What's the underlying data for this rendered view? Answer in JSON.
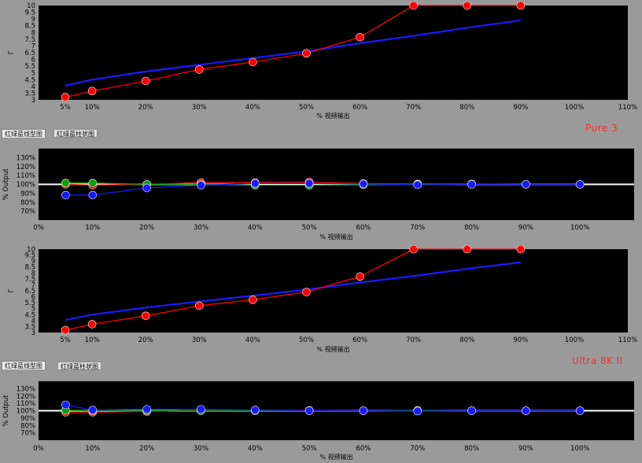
{
  "panels": [
    {
      "brand_label": "Pure 3",
      "tabs": [
        {
          "label": "红绿蓝线型图",
          "active": true
        },
        {
          "label": "红绿蓝柱状图",
          "active": false
        }
      ]
    },
    {
      "brand_label": "Ultra 8K II",
      "tabs": [
        {
          "label": "红绿蓝线型图",
          "active": true
        },
        {
          "label": "红绿蓝柱状图",
          "active": false
        }
      ]
    }
  ],
  "colors": {
    "red": "#ff0000",
    "green": "#0aa10a",
    "blue": "#1a1aff",
    "plot_bg": "#000000",
    "panel_bg": "#9a9a9a",
    "reference_line": "#ffffff"
  },
  "chart_data": [
    {
      "id": "gamma-1",
      "type": "line",
      "xlabel": "% 视频输出",
      "ylabel": "Γ",
      "xlim": [
        0,
        110
      ],
      "ylim": [
        3,
        10
      ],
      "x_ticks": [
        5,
        10,
        20,
        30,
        40,
        50,
        60,
        70,
        80,
        90,
        100,
        110
      ],
      "x_tick_labels": [
        "5%",
        "10%",
        "20%",
        "30%",
        "40%",
        "50%",
        "60%",
        "70%",
        "80%",
        "90%",
        "100%",
        "110%"
      ],
      "y_ticks": [
        3,
        3.5,
        4,
        4.5,
        5,
        5.5,
        6,
        6.5,
        7,
        7.5,
        8,
        8.5,
        9,
        9.5,
        10
      ],
      "y_tick_labels": [
        "3",
        "3.5",
        "4",
        "4.5",
        "5",
        "5.5",
        "6",
        "6.5",
        "7",
        "7.5",
        "8",
        "8.5",
        "9",
        "9.5",
        "10"
      ],
      "series": [
        {
          "color": "blue",
          "markers": false,
          "x": [
            5,
            10,
            20,
            30,
            40,
            50,
            60,
            70,
            80,
            90
          ],
          "y": [
            4.05,
            4.5,
            5.1,
            5.6,
            6.1,
            6.6,
            7.2,
            7.75,
            8.35,
            8.9
          ]
        },
        {
          "color": "red",
          "markers": true,
          "x": [
            5,
            10,
            20,
            30,
            40,
            50,
            60,
            70,
            80,
            90
          ],
          "y": [
            3.2,
            3.65,
            4.4,
            5.25,
            5.8,
            6.45,
            7.65,
            10,
            10,
            10
          ]
        }
      ]
    },
    {
      "id": "rgb-balance-1",
      "type": "line",
      "xlabel": "% 视频输出",
      "ylabel": "% Output",
      "xlim": [
        0,
        110
      ],
      "ylim": [
        60,
        140
      ],
      "x_ticks": [
        0,
        10,
        20,
        30,
        40,
        50,
        60,
        70,
        80,
        90,
        100
      ],
      "x_tick_labels": [
        "0%",
        "10%",
        "20%",
        "30%",
        "40%",
        "50%",
        "60%",
        "70%",
        "80%",
        "90%",
        "100%"
      ],
      "y_ticks": [
        70,
        80,
        90,
        100,
        110,
        120,
        130
      ],
      "y_tick_labels": [
        "70%",
        "80%",
        "90%",
        "100%",
        "110%",
        "120%",
        "130%"
      ],
      "reference_value": 100,
      "series": [
        {
          "color": "red",
          "markers": true,
          "x": [
            5,
            10,
            20,
            30,
            40,
            50,
            60,
            70,
            80,
            90,
            100
          ],
          "y": [
            100,
            99,
            100,
            102,
            102,
            102.5,
            101,
            100.5,
            100.5,
            100,
            100
          ]
        },
        {
          "color": "green",
          "markers": true,
          "x": [
            5,
            10,
            20,
            30,
            40,
            50,
            60,
            70,
            80,
            90,
            100
          ],
          "y": [
            101.5,
            101.5,
            100,
            100,
            99,
            99,
            99.5,
            100,
            100,
            100,
            100
          ]
        },
        {
          "color": "blue",
          "markers": true,
          "x": [
            5,
            10,
            20,
            30,
            40,
            50,
            60,
            70,
            80,
            90,
            100
          ],
          "y": [
            88,
            88,
            96,
            99,
            101,
            101,
            100.5,
            99.5,
            100,
            100,
            100
          ]
        }
      ]
    },
    {
      "id": "gamma-2",
      "type": "line",
      "xlabel": "% 视频输出",
      "ylabel": "Γ",
      "xlim": [
        0,
        110
      ],
      "ylim": [
        3,
        10
      ],
      "x_ticks": [
        5,
        10,
        20,
        30,
        40,
        50,
        60,
        70,
        80,
        90,
        100,
        110
      ],
      "x_tick_labels": [
        "5%",
        "10%",
        "20%",
        "30%",
        "40%",
        "50%",
        "60%",
        "70%",
        "80%",
        "90%",
        "100%",
        "110%"
      ],
      "y_ticks": [
        3,
        3.5,
        4,
        4.5,
        5,
        5.5,
        6,
        6.5,
        7,
        7.5,
        8,
        8.5,
        9,
        9.5,
        10
      ],
      "y_tick_labels": [
        "3",
        "3.5",
        "4",
        "4.5",
        "5",
        "5.5",
        "6",
        "6.5",
        "7",
        "7.5",
        "8",
        "8.5",
        "9",
        "9.5",
        "10"
      ],
      "series": [
        {
          "color": "blue",
          "markers": false,
          "x": [
            5,
            10,
            20,
            30,
            40,
            50,
            60,
            70,
            80,
            90
          ],
          "y": [
            4.05,
            4.5,
            5.1,
            5.6,
            6.1,
            6.6,
            7.2,
            7.75,
            8.35,
            8.9
          ]
        },
        {
          "color": "red",
          "markers": true,
          "x": [
            5,
            10,
            20,
            30,
            40,
            50,
            60,
            70,
            80,
            90
          ],
          "y": [
            3.2,
            3.7,
            4.4,
            5.25,
            5.75,
            6.4,
            7.7,
            10,
            10,
            10
          ]
        }
      ]
    },
    {
      "id": "rgb-balance-2",
      "type": "line",
      "xlabel": "% 视频输出",
      "ylabel": "% Output",
      "xlim": [
        0,
        110
      ],
      "ylim": [
        60,
        140
      ],
      "x_ticks": [
        0,
        10,
        20,
        30,
        40,
        50,
        60,
        70,
        80,
        90,
        100
      ],
      "x_tick_labels": [
        "0%",
        "10%",
        "20%",
        "30%",
        "40%",
        "50%",
        "60%",
        "70%",
        "80%",
        "90%",
        "100%"
      ],
      "y_ticks": [
        70,
        80,
        90,
        100,
        110,
        120,
        130
      ],
      "y_tick_labels": [
        "70%",
        "80%",
        "90%",
        "100%",
        "110%",
        "120%",
        "130%"
      ],
      "reference_value": 100,
      "series": [
        {
          "color": "red",
          "markers": true,
          "x": [
            5,
            10,
            20,
            30,
            40,
            50,
            60,
            70,
            80,
            90,
            100
          ],
          "y": [
            98,
            98,
            99,
            101,
            100.5,
            100.5,
            100,
            100,
            100,
            100,
            100
          ]
        },
        {
          "color": "green",
          "markers": true,
          "x": [
            5,
            10,
            20,
            30,
            40,
            50,
            60,
            70,
            80,
            90,
            100
          ],
          "y": [
            100.5,
            100,
            100,
            100,
            100,
            100,
            100,
            100.5,
            100,
            100,
            100
          ]
        },
        {
          "color": "blue",
          "markers": true,
          "x": [
            5,
            10,
            20,
            30,
            40,
            50,
            60,
            70,
            80,
            90,
            100
          ],
          "y": [
            108,
            101,
            102,
            102,
            101,
            100,
            100,
            99.5,
            100,
            100,
            100
          ]
        }
      ]
    }
  ]
}
